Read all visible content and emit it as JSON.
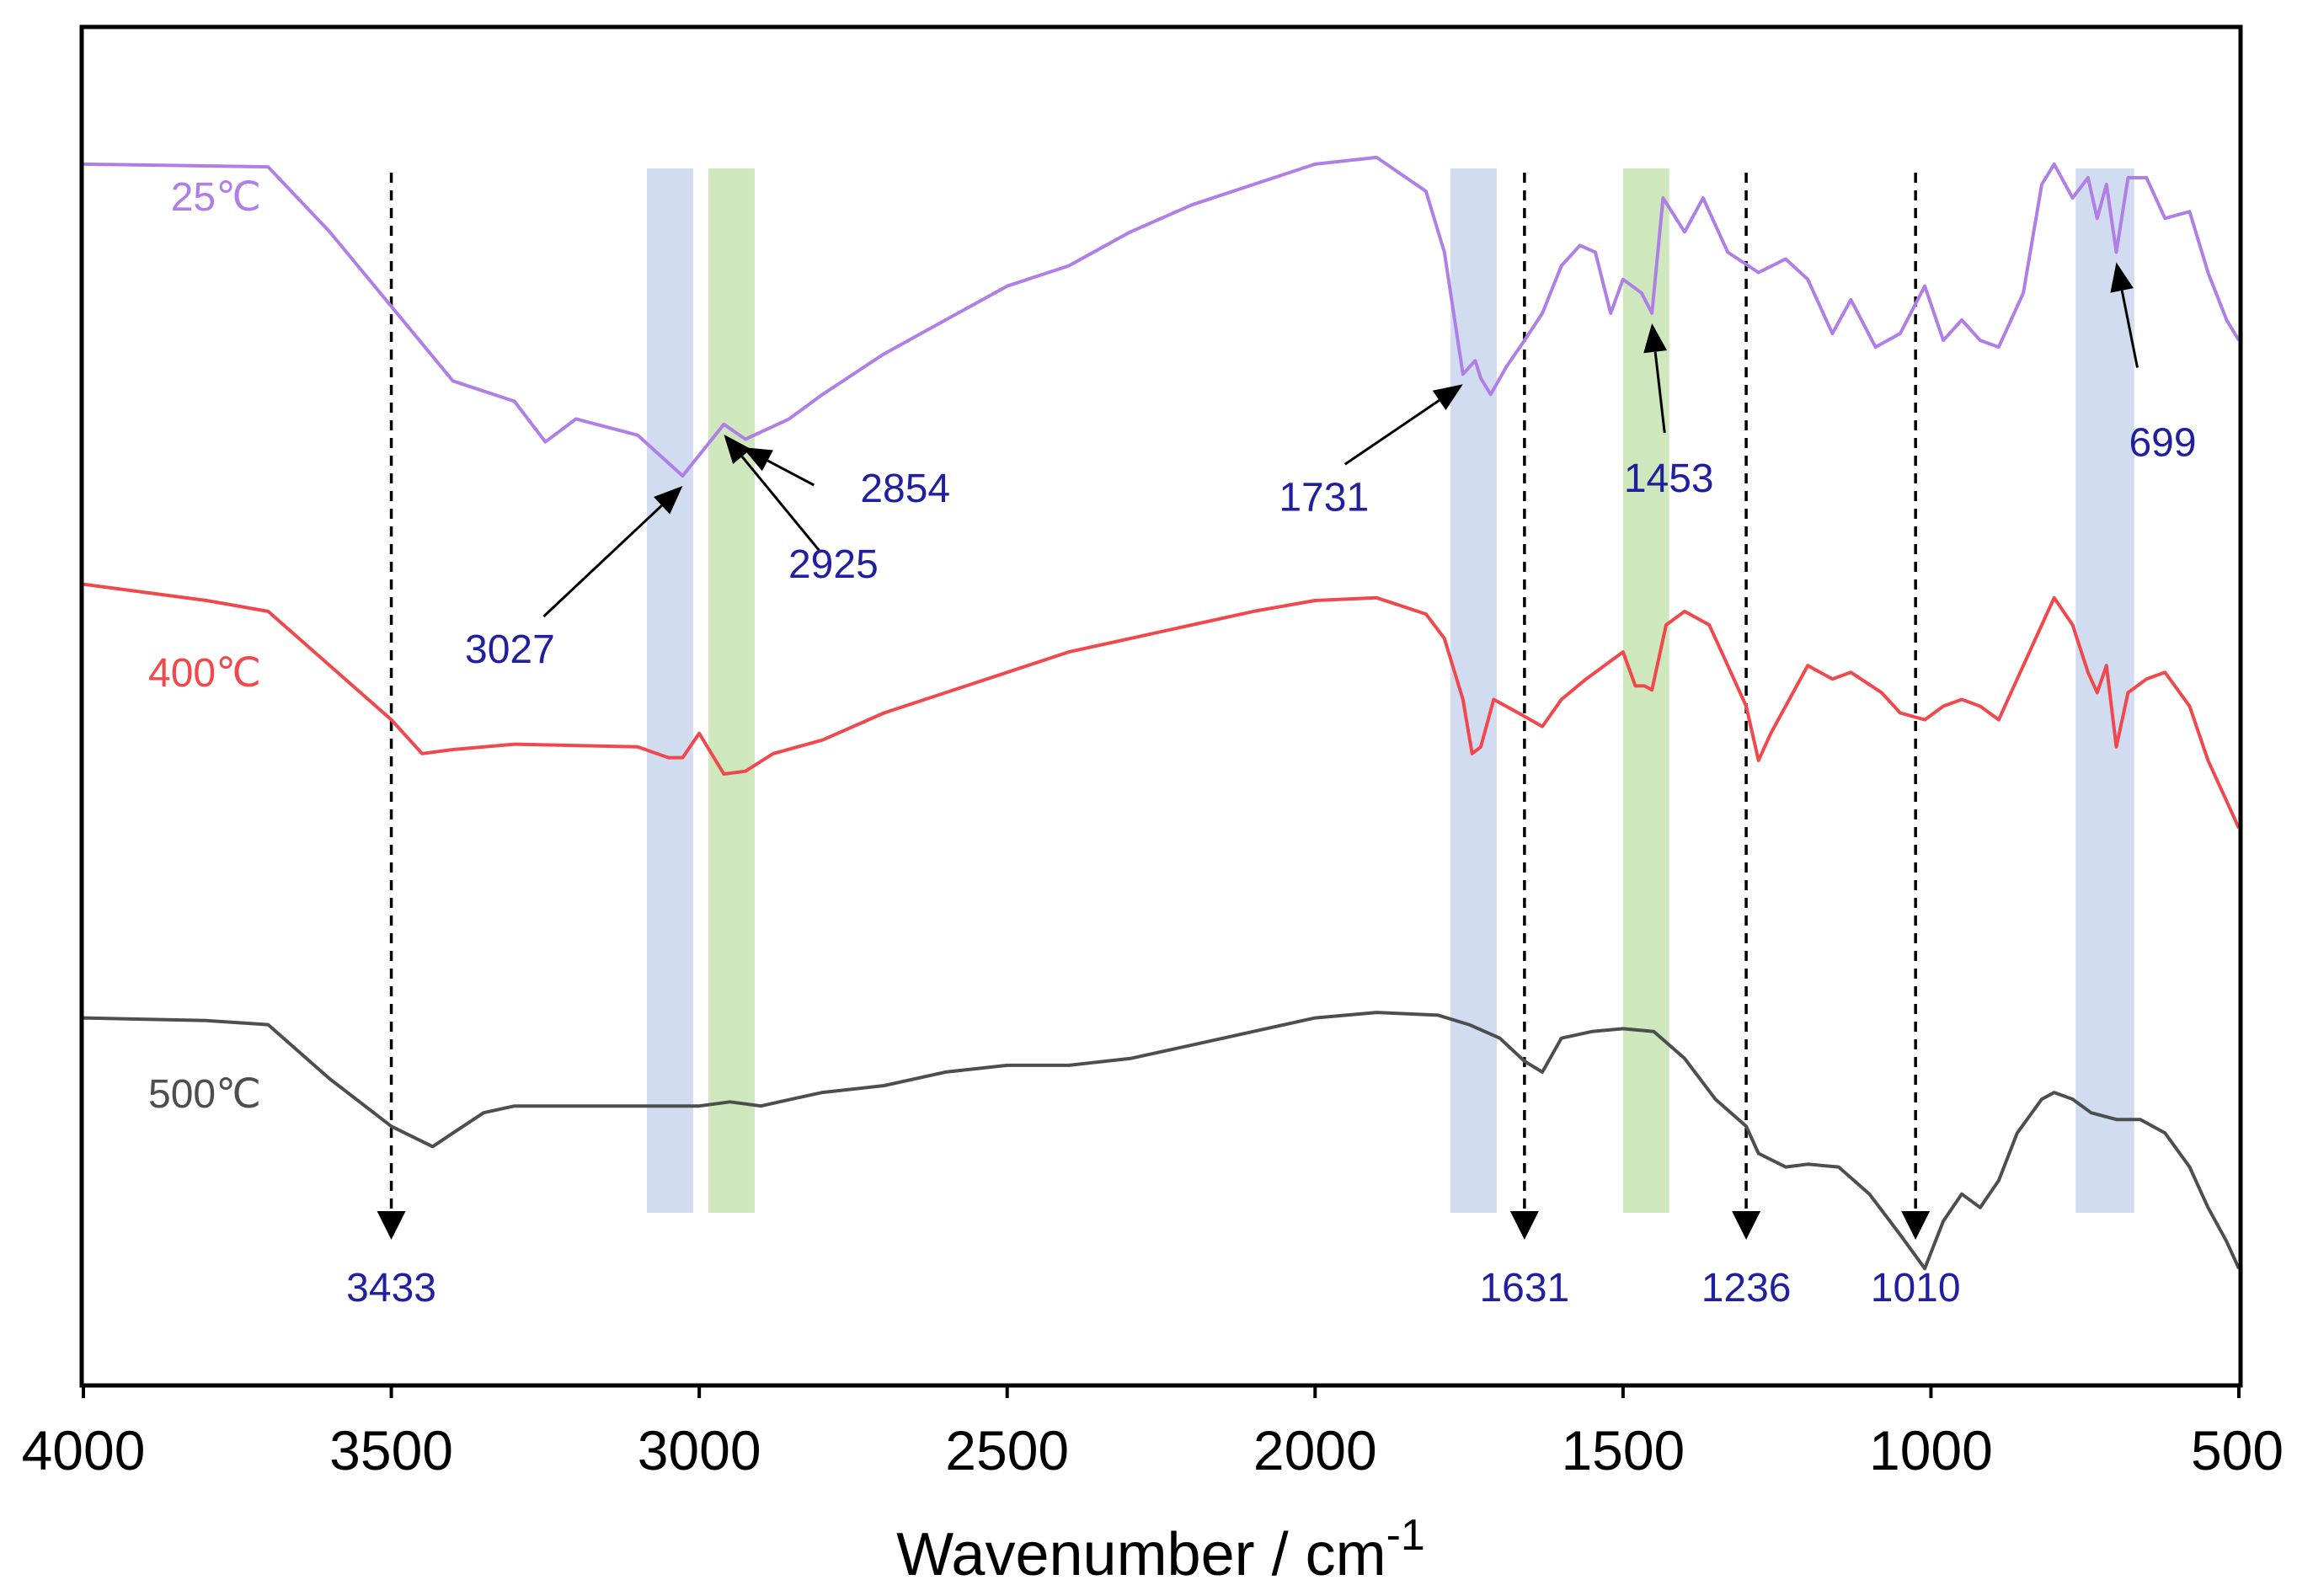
{
  "chart_data": {
    "type": "line",
    "title": "",
    "xlabel": "Wavenumber / cm",
    "xlabel_sup": "-1",
    "ylabel": "",
    "xlim": [
      4000,
      500
    ],
    "x_ticks": [
      "4000",
      "3500",
      "3000",
      "2500",
      "2000",
      "1500",
      "1000",
      "500"
    ],
    "x_tick_values": [
      4000,
      3500,
      3000,
      2500,
      2000,
      1500,
      1000,
      500
    ],
    "series": [
      {
        "name": "25℃",
        "color": "#b07fe6",
        "points": [
          [
            4000,
            0.1
          ],
          [
            3700,
            0.102
          ],
          [
            3600,
            0.15
          ],
          [
            3500,
            0.205
          ],
          [
            3400,
            0.26
          ],
          [
            3300,
            0.275
          ],
          [
            3250,
            0.305
          ],
          [
            3200,
            0.288
          ],
          [
            3100,
            0.3
          ],
          [
            3027,
            0.33
          ],
          [
            2960,
            0.292
          ],
          [
            2925,
            0.303
          ],
          [
            2854,
            0.288
          ],
          [
            2800,
            0.27
          ],
          [
            2700,
            0.24
          ],
          [
            2600,
            0.215
          ],
          [
            2500,
            0.19
          ],
          [
            2400,
            0.175
          ],
          [
            2300,
            0.15
          ],
          [
            2200,
            0.13
          ],
          [
            2100,
            0.115
          ],
          [
            2000,
            0.1
          ],
          [
            1900,
            0.095
          ],
          [
            1820,
            0.12
          ],
          [
            1790,
            0.165
          ],
          [
            1760,
            0.255
          ],
          [
            1740,
            0.245
          ],
          [
            1731,
            0.258
          ],
          [
            1715,
            0.27
          ],
          [
            1690,
            0.25
          ],
          [
            1660,
            0.23
          ],
          [
            1631,
            0.21
          ],
          [
            1600,
            0.175
          ],
          [
            1570,
            0.16
          ],
          [
            1545,
            0.165
          ],
          [
            1520,
            0.21
          ],
          [
            1500,
            0.185
          ],
          [
            1470,
            0.195
          ],
          [
            1453,
            0.21
          ],
          [
            1435,
            0.125
          ],
          [
            1400,
            0.15
          ],
          [
            1370,
            0.125
          ],
          [
            1330,
            0.165
          ],
          [
            1280,
            0.18
          ],
          [
            1236,
            0.17
          ],
          [
            1200,
            0.185
          ],
          [
            1160,
            0.225
          ],
          [
            1130,
            0.2
          ],
          [
            1090,
            0.235
          ],
          [
            1050,
            0.225
          ],
          [
            1010,
            0.19
          ],
          [
            980,
            0.23
          ],
          [
            950,
            0.215
          ],
          [
            920,
            0.23
          ],
          [
            890,
            0.235
          ],
          [
            850,
            0.195
          ],
          [
            820,
            0.115
          ],
          [
            800,
            0.1
          ],
          [
            770,
            0.125
          ],
          [
            745,
            0.11
          ],
          [
            730,
            0.14
          ],
          [
            715,
            0.115
          ],
          [
            699,
            0.165
          ],
          [
            680,
            0.11
          ],
          [
            650,
            0.11
          ],
          [
            620,
            0.14
          ],
          [
            580,
            0.135
          ],
          [
            550,
            0.18
          ],
          [
            520,
            0.215
          ],
          [
            500,
            0.23
          ]
        ]
      },
      {
        "name": "400℃",
        "color": "#f0484c",
        "points": [
          [
            4000,
            0.41
          ],
          [
            3800,
            0.422
          ],
          [
            3700,
            0.43
          ],
          [
            3600,
            0.47
          ],
          [
            3500,
            0.51
          ],
          [
            3450,
            0.535
          ],
          [
            3400,
            0.532
          ],
          [
            3300,
            0.528
          ],
          [
            3100,
            0.53
          ],
          [
            3050,
            0.538
          ],
          [
            3027,
            0.538
          ],
          [
            3000,
            0.52
          ],
          [
            2960,
            0.55
          ],
          [
            2925,
            0.548
          ],
          [
            2880,
            0.535
          ],
          [
            2800,
            0.525
          ],
          [
            2700,
            0.505
          ],
          [
            2600,
            0.49
          ],
          [
            2500,
            0.475
          ],
          [
            2400,
            0.46
          ],
          [
            2300,
            0.45
          ],
          [
            2200,
            0.44
          ],
          [
            2100,
            0.43
          ],
          [
            2000,
            0.422
          ],
          [
            1900,
            0.42
          ],
          [
            1820,
            0.432
          ],
          [
            1790,
            0.45
          ],
          [
            1760,
            0.495
          ],
          [
            1745,
            0.535
          ],
          [
            1731,
            0.53
          ],
          [
            1710,
            0.495
          ],
          [
            1670,
            0.505
          ],
          [
            1631,
            0.515
          ],
          [
            1600,
            0.495
          ],
          [
            1560,
            0.48
          ],
          [
            1530,
            0.47
          ],
          [
            1500,
            0.46
          ],
          [
            1480,
            0.485
          ],
          [
            1465,
            0.485
          ],
          [
            1453,
            0.488
          ],
          [
            1430,
            0.44
          ],
          [
            1400,
            0.43
          ],
          [
            1360,
            0.44
          ],
          [
            1330,
            0.47
          ],
          [
            1300,
            0.5
          ],
          [
            1280,
            0.54
          ],
          [
            1260,
            0.52
          ],
          [
            1236,
            0.5
          ],
          [
            1200,
            0.47
          ],
          [
            1160,
            0.48
          ],
          [
            1130,
            0.475
          ],
          [
            1080,
            0.49
          ],
          [
            1050,
            0.505
          ],
          [
            1010,
            0.51
          ],
          [
            980,
            0.5
          ],
          [
            950,
            0.495
          ],
          [
            920,
            0.5
          ],
          [
            890,
            0.51
          ],
          [
            860,
            0.48
          ],
          [
            820,
            0.44
          ],
          [
            800,
            0.42
          ],
          [
            770,
            0.44
          ],
          [
            745,
            0.475
          ],
          [
            730,
            0.49
          ],
          [
            715,
            0.47
          ],
          [
            699,
            0.53
          ],
          [
            680,
            0.49
          ],
          [
            650,
            0.48
          ],
          [
            620,
            0.475
          ],
          [
            580,
            0.5
          ],
          [
            550,
            0.54
          ],
          [
            520,
            0.57
          ],
          [
            500,
            0.59
          ]
        ]
      },
      {
        "name": "500℃",
        "color": "#4e4e4e",
        "points": [
          [
            4000,
            0.73
          ],
          [
            3800,
            0.732
          ],
          [
            3700,
            0.735
          ],
          [
            3600,
            0.775
          ],
          [
            3500,
            0.81
          ],
          [
            3433,
            0.825
          ],
          [
            3400,
            0.815
          ],
          [
            3350,
            0.8
          ],
          [
            3300,
            0.795
          ],
          [
            3200,
            0.795
          ],
          [
            3100,
            0.795
          ],
          [
            3000,
            0.795
          ],
          [
            2950,
            0.792
          ],
          [
            2900,
            0.795
          ],
          [
            2850,
            0.79
          ],
          [
            2800,
            0.785
          ],
          [
            2700,
            0.78
          ],
          [
            2600,
            0.77
          ],
          [
            2500,
            0.765
          ],
          [
            2400,
            0.765
          ],
          [
            2300,
            0.76
          ],
          [
            2200,
            0.75
          ],
          [
            2100,
            0.74
          ],
          [
            2000,
            0.73
          ],
          [
            1900,
            0.726
          ],
          [
            1800,
            0.728
          ],
          [
            1750,
            0.735
          ],
          [
            1700,
            0.745
          ],
          [
            1660,
            0.762
          ],
          [
            1631,
            0.77
          ],
          [
            1600,
            0.745
          ],
          [
            1550,
            0.74
          ],
          [
            1500,
            0.738
          ],
          [
            1450,
            0.74
          ],
          [
            1400,
            0.76
          ],
          [
            1350,
            0.79
          ],
          [
            1300,
            0.81
          ],
          [
            1280,
            0.83
          ],
          [
            1236,
            0.84
          ],
          [
            1200,
            0.838
          ],
          [
            1150,
            0.84
          ],
          [
            1100,
            0.86
          ],
          [
            1050,
            0.89
          ],
          [
            1010,
            0.915
          ],
          [
            980,
            0.88
          ],
          [
            950,
            0.86
          ],
          [
            920,
            0.87
          ],
          [
            890,
            0.85
          ],
          [
            860,
            0.815
          ],
          [
            820,
            0.79
          ],
          [
            800,
            0.785
          ],
          [
            770,
            0.79
          ],
          [
            740,
            0.8
          ],
          [
            699,
            0.805
          ],
          [
            660,
            0.805
          ],
          [
            620,
            0.815
          ],
          [
            580,
            0.84
          ],
          [
            550,
            0.87
          ],
          [
            520,
            0.895
          ],
          [
            500,
            0.915
          ]
        ]
      }
    ],
    "bands": [
      {
        "from": 3085,
        "to": 3010,
        "color": "blue"
      },
      {
        "from": 2985,
        "to": 2910,
        "color": "green"
      },
      {
        "from": 1780,
        "to": 1705,
        "color": "blue"
      },
      {
        "from": 1500,
        "to": 1425,
        "color": "green"
      },
      {
        "from": 765,
        "to": 670,
        "color": "blue"
      }
    ],
    "band_colors": {
      "blue": "#c9d6ee",
      "green": "#c5e3b1"
    },
    "dashed_markers": [
      {
        "wavenumber": 3500,
        "label": "3433"
      },
      {
        "wavenumber": 1660,
        "label": "1631"
      },
      {
        "wavenumber": 1300,
        "label": "1236"
      },
      {
        "wavenumber": 1025,
        "label": "1010"
      }
    ],
    "annotations": [
      {
        "label": "3027",
        "wavenumber": 3027
      },
      {
        "label": "2925",
        "wavenumber": 2960
      },
      {
        "label": "2854",
        "wavenumber": 2930
      },
      {
        "label": "1731",
        "wavenumber": 1760
      },
      {
        "label": "1453",
        "wavenumber": 1453
      },
      {
        "label": "699",
        "wavenumber": 699
      }
    ],
    "annotation_color": "#1f1fa0",
    "legend": "inline-left",
    "grid": false
  }
}
